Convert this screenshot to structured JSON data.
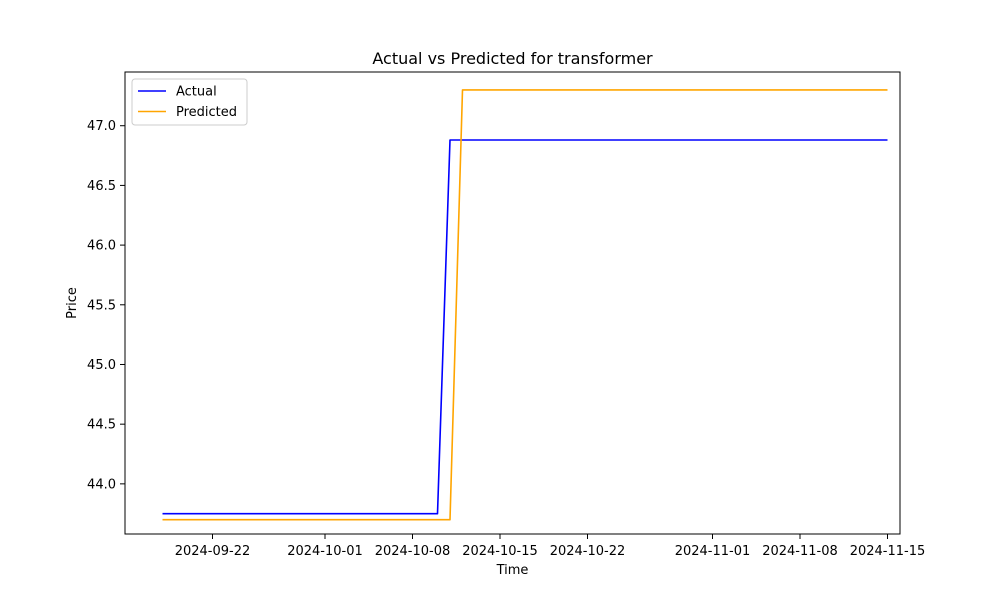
{
  "chart_data": {
    "type": "line",
    "title": "Actual vs Predicted for transformer",
    "xlabel": "Time",
    "ylabel": "Price",
    "xlim": [
      "2024-09-15",
      "2024-11-16"
    ],
    "ylim": [
      43.58,
      47.45
    ],
    "xticks": [
      "2024-09-22",
      "2024-10-01",
      "2024-10-08",
      "2024-10-15",
      "2024-10-22",
      "2024-11-01",
      "2024-11-08",
      "2024-11-15"
    ],
    "yticks": [
      "44.0",
      "44.5",
      "45.0",
      "45.5",
      "46.0",
      "46.5",
      "47.0"
    ],
    "grid": false,
    "legend_position": "upper-left",
    "series": [
      {
        "name": "Actual",
        "color": "#0000ff",
        "points": [
          {
            "x": "2024-09-18",
            "y": 43.75
          },
          {
            "x": "2024-10-10",
            "y": 43.75
          },
          {
            "x": "2024-10-11",
            "y": 46.88
          },
          {
            "x": "2024-11-15",
            "y": 46.88
          }
        ]
      },
      {
        "name": "Predicted",
        "color": "#ffa500",
        "points": [
          {
            "x": "2024-09-18",
            "y": 43.7
          },
          {
            "x": "2024-10-11",
            "y": 43.7
          },
          {
            "x": "2024-10-12",
            "y": 47.3
          },
          {
            "x": "2024-11-15",
            "y": 47.3
          }
        ]
      }
    ]
  }
}
